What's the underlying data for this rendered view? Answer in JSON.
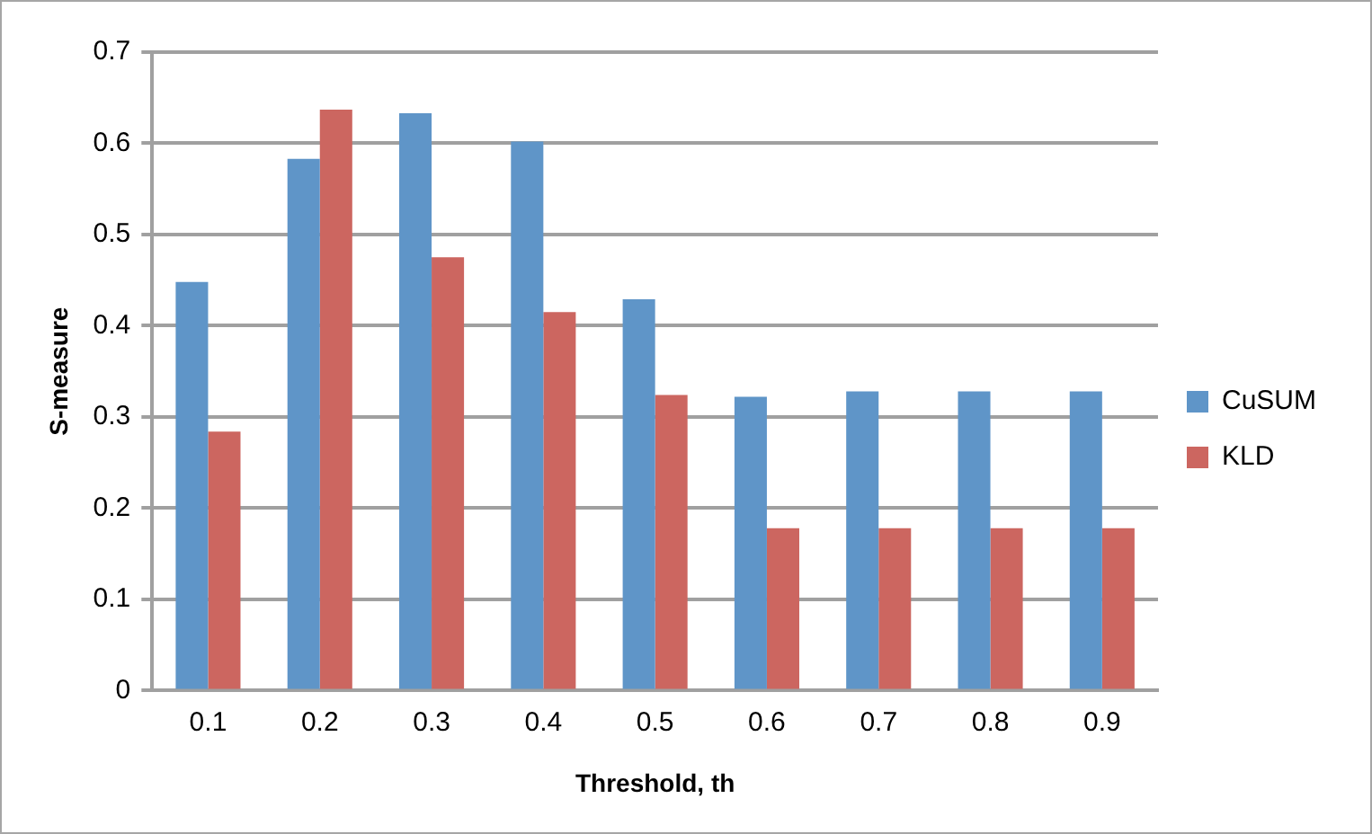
{
  "chart_data": {
    "type": "bar",
    "xlabel": "Threshold, th",
    "ylabel": "S-measure",
    "categories": [
      "0.1",
      "0.2",
      "0.3",
      "0.4",
      "0.5",
      "0.6",
      "0.7",
      "0.8",
      "0.9"
    ],
    "series": [
      {
        "name": "CuSUM",
        "color": "#5f95c8",
        "values": [
          0.448,
          0.583,
          0.633,
          0.602,
          0.429,
          0.322,
          0.328,
          0.328,
          0.328
        ]
      },
      {
        "name": "KLD",
        "color": "#cc6660",
        "values": [
          0.284,
          0.637,
          0.475,
          0.415,
          0.324,
          0.178,
          0.178,
          0.178,
          0.178
        ]
      }
    ],
    "ylim": [
      0,
      0.7
    ],
    "yticks": [
      0,
      0.1,
      0.2,
      0.3,
      0.4,
      0.5,
      0.6,
      0.7
    ],
    "grid": "y",
    "legend": "right"
  }
}
